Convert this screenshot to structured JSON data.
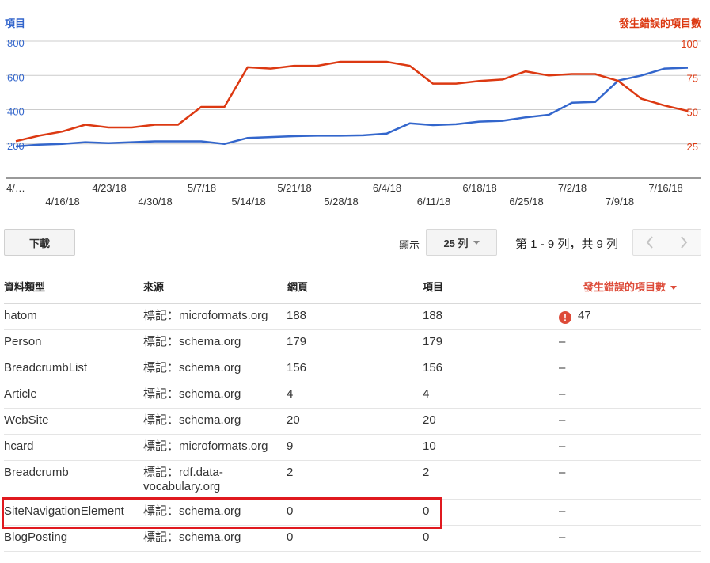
{
  "chart_data": {
    "type": "line",
    "left_axis_title": "項目",
    "right_axis_title": "發生錯誤的項目數",
    "left_ticks": [
      "200",
      "400",
      "600",
      "800"
    ],
    "right_ticks": [
      "25",
      "50",
      "75",
      "100"
    ],
    "x_labels_row1": [
      "4/…",
      "4/23/18",
      "5/7/18",
      "5/21/18",
      "6/4/18",
      "6/18/18",
      "7/2/18",
      "7/16/18"
    ],
    "x_labels_row2": [
      "4/16/18",
      "4/30/18",
      "5/14/18",
      "5/28/18",
      "6/11/18",
      "6/25/18",
      "7/9/18"
    ],
    "ylim_left": [
      0,
      800
    ],
    "ylim_right": [
      0,
      100
    ],
    "grid": true,
    "series": [
      {
        "name": "項目",
        "axis": "left",
        "color": "#3366cc",
        "values": [
          185,
          195,
          200,
          210,
          205,
          210,
          215,
          215,
          215,
          200,
          235,
          240,
          245,
          248,
          248,
          250,
          260,
          320,
          310,
          315,
          330,
          335,
          355,
          370,
          440,
          445,
          570,
          600,
          640,
          645
        ]
      },
      {
        "name": "發生錯誤的項目數",
        "axis": "right",
        "color": "#dc3912",
        "values": [
          27,
          31,
          34,
          39,
          37,
          37,
          39,
          39,
          52,
          52,
          81,
          80,
          82,
          82,
          85,
          85,
          85,
          82,
          69,
          69,
          71,
          72,
          78,
          75,
          76,
          76,
          71,
          58,
          53,
          49
        ]
      }
    ]
  },
  "toolbar": {
    "download_label": "下載",
    "show_label": "顯示",
    "rows_value": "25 列",
    "page_info": "第 1 - 9 列，共 9 列"
  },
  "table": {
    "headers": {
      "type": "資料類型",
      "source": "來源",
      "pages": "網頁",
      "items": "項目",
      "errors": "發生錯誤的項目數"
    },
    "rows": [
      {
        "type": "hatom",
        "source": "標記：microformats.org",
        "pages": "188",
        "items": "188",
        "errors": "47",
        "has_error": true
      },
      {
        "type": "Person",
        "source": "標記：schema.org",
        "pages": "179",
        "items": "179",
        "errors": "–"
      },
      {
        "type": "BreadcrumbList",
        "source": "標記：schema.org",
        "pages": "156",
        "items": "156",
        "errors": "–"
      },
      {
        "type": "Article",
        "source": "標記：schema.org",
        "pages": "4",
        "items": "4",
        "errors": "–"
      },
      {
        "type": "WebSite",
        "source": "標記：schema.org",
        "pages": "20",
        "items": "20",
        "errors": "–"
      },
      {
        "type": "hcard",
        "source": "標記：microformats.org",
        "pages": "9",
        "items": "10",
        "errors": "–"
      },
      {
        "type": "Breadcrumb",
        "source": "標記：rdf.data-vocabulary.org",
        "pages": "2",
        "items": "2",
        "errors": "–"
      },
      {
        "type": "SiteNavigationElement",
        "source": "標記：schema.org",
        "pages": "0",
        "items": "0",
        "errors": "–"
      },
      {
        "type": "BlogPosting",
        "source": "標記：schema.org",
        "pages": "0",
        "items": "0",
        "errors": "–"
      }
    ]
  },
  "colors": {
    "left_axis": "#3366cc",
    "right_axis": "#dc3912",
    "highlight": "#e0191f"
  }
}
